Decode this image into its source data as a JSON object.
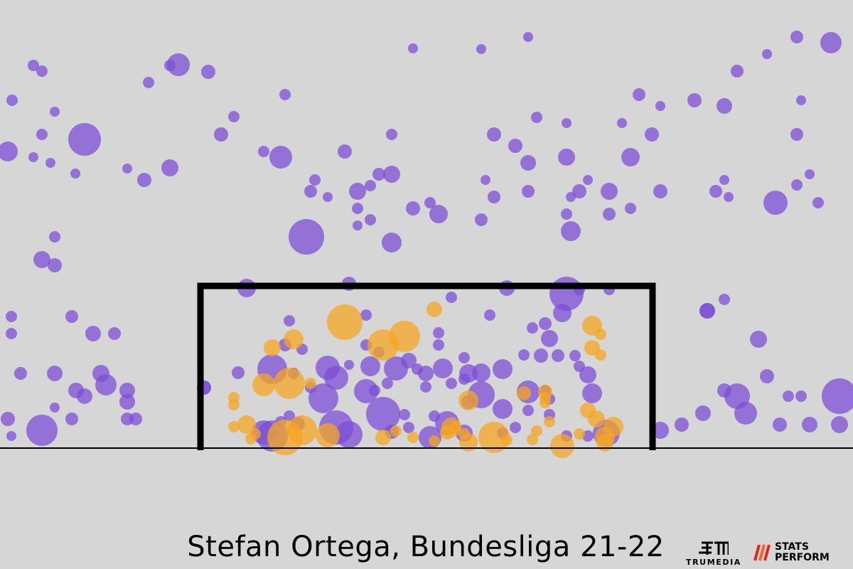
{
  "title": "Stefan Ortega, Bundesliga 21-22",
  "logos": {
    "trumedia": "TRUMEDIA",
    "statsperform": "STATS\nPERFORM"
  },
  "colors": {
    "background": "#d6d6d6",
    "not_goal": "#7c4fd6",
    "goal": "#f5a623",
    "frame": "#000000"
  },
  "chart_data": {
    "type": "scatter",
    "title": "Stefan Ortega, Bundesliga 21-22",
    "xlabel": "",
    "ylabel": "",
    "xlim": [
      0,
      1200
    ],
    "ylim": [
      0,
      630
    ],
    "goal_frame": {
      "x": [
        282,
        918
      ],
      "y": [
        0,
        228
      ]
    },
    "grid": false,
    "series": [
      {
        "color": "#7c4fd6",
        "points": [
          [
            47,
            538,
            8
          ],
          [
            59,
            530,
            8
          ],
          [
            17,
            489,
            8
          ],
          [
            77,
            473,
            7
          ],
          [
            119,
            434,
            23
          ],
          [
            11,
            417,
            14
          ],
          [
            47,
            409,
            7
          ],
          [
            71,
            401,
            7
          ],
          [
            59,
            441,
            8
          ],
          [
            106,
            386,
            7
          ],
          [
            179,
            393,
            7
          ],
          [
            203,
            377,
            10
          ],
          [
            239,
            394,
            12
          ],
          [
            209,
            514,
            8
          ],
          [
            239,
            538,
            8
          ],
          [
            251,
            539,
            16
          ],
          [
            293,
            529,
            10
          ],
          [
            329,
            466,
            8
          ],
          [
            311,
            441,
            10
          ],
          [
            371,
            417,
            8
          ],
          [
            395,
            409,
            16
          ],
          [
            401,
            497,
            8
          ],
          [
            581,
            562,
            7
          ],
          [
            677,
            561,
            7
          ],
          [
            743,
            578,
            7
          ],
          [
            1121,
            578,
            9
          ],
          [
            1169,
            570,
            15
          ],
          [
            1079,
            554,
            7
          ],
          [
            1037,
            530,
            9
          ],
          [
            977,
            489,
            10
          ],
          [
            1019,
            481,
            11
          ],
          [
            1127,
            489,
            7
          ],
          [
            1121,
            441,
            9
          ],
          [
            1139,
            385,
            7
          ],
          [
            1091,
            345,
            17
          ],
          [
            1151,
            345,
            8
          ],
          [
            1025,
            353,
            7
          ],
          [
            1007,
            361,
            9
          ],
          [
            1019,
            377,
            7
          ],
          [
            929,
            361,
            10
          ],
          [
            917,
            441,
            10
          ],
          [
            899,
            497,
            9
          ],
          [
            929,
            481,
            7
          ],
          [
            875,
            457,
            7
          ],
          [
            887,
            409,
            13
          ],
          [
            857,
            361,
            12
          ],
          [
            887,
            337,
            8
          ],
          [
            857,
            329,
            9
          ],
          [
            803,
            305,
            14
          ],
          [
            797,
            329,
            8
          ],
          [
            803,
            353,
            7
          ],
          [
            815,
            361,
            10
          ],
          [
            827,
            377,
            7
          ],
          [
            797,
            409,
            12
          ],
          [
            743,
            401,
            11
          ],
          [
            725,
            425,
            10
          ],
          [
            695,
            441,
            10
          ],
          [
            755,
            465,
            8
          ],
          [
            797,
            457,
            7
          ],
          [
            683,
            377,
            7
          ],
          [
            695,
            353,
            9
          ],
          [
            743,
            361,
            9
          ],
          [
            677,
            321,
            9
          ],
          [
            617,
            329,
            13
          ],
          [
            605,
            345,
            8
          ],
          [
            581,
            337,
            10
          ],
          [
            551,
            441,
            8
          ],
          [
            485,
            417,
            10
          ],
          [
            443,
            377,
            8
          ],
          [
            437,
            361,
            9
          ],
          [
            461,
            353,
            7
          ],
          [
            431,
            297,
            25
          ],
          [
            503,
            337,
            8
          ],
          [
            503,
            313,
            7
          ],
          [
            521,
            321,
            8
          ],
          [
            521,
            369,
            8
          ],
          [
            533,
            385,
            9
          ],
          [
            551,
            385,
            12
          ],
          [
            551,
            289,
            14
          ],
          [
            503,
            361,
            12
          ],
          [
            77,
            297,
            8
          ],
          [
            59,
            265,
            12
          ],
          [
            77,
            257,
            10
          ],
          [
            1121,
            370,
            8
          ],
          [
            1019,
            209,
            8
          ],
          [
            995,
            193,
            11
          ],
          [
            16,
            185,
            8
          ],
          [
            16,
            161,
            8
          ],
          [
            101,
            185,
            9
          ],
          [
            131,
            161,
            11
          ],
          [
            161,
            161,
            9
          ],
          [
            29,
            105,
            9
          ],
          [
            77,
            105,
            11
          ],
          [
            107,
            81,
            11
          ],
          [
            142,
            105,
            12
          ],
          [
            149,
            89,
            15
          ],
          [
            179,
            81,
            11
          ],
          [
            119,
            73,
            11
          ],
          [
            179,
            65,
            11
          ],
          [
            179,
            41,
            9
          ],
          [
            191,
            41,
            9
          ],
          [
            101,
            41,
            9
          ],
          [
            77,
            57,
            7
          ],
          [
            11,
            41,
            10
          ],
          [
            16,
            17,
            7
          ],
          [
            59,
            25,
            22
          ],
          [
            287,
            85,
            10
          ],
          [
            929,
            25,
            12
          ],
          [
            959,
            33,
            10
          ],
          [
            989,
            49,
            11
          ],
          [
            1019,
            81,
            10
          ],
          [
            1037,
            73,
            18
          ],
          [
            1049,
            49,
            16
          ],
          [
            1097,
            33,
            10
          ],
          [
            1139,
            33,
            11
          ],
          [
            1181,
            33,
            12
          ],
          [
            1127,
            73,
            8
          ],
          [
            1079,
            101,
            10
          ],
          [
            1109,
            73,
            8
          ],
          [
            1181,
            73,
            25
          ],
          [
            1067,
            153,
            12
          ],
          [
            995,
            193,
            11
          ]
        ]
      },
      {
        "color": "#7c4fd6",
        "points": [
          [
            347,
            225,
            13
          ],
          [
            491,
            231,
            10
          ],
          [
            713,
            225,
            11
          ],
          [
            797,
            217,
            24
          ],
          [
            815,
            223,
            8
          ],
          [
            857,
            223,
            8
          ],
          [
            635,
            212,
            8
          ],
          [
            407,
            179,
            8
          ],
          [
            515,
            187,
            8
          ],
          [
            689,
            187,
            8
          ],
          [
            791,
            190,
            13
          ],
          [
            767,
            175,
            9
          ],
          [
            749,
            169,
            8
          ],
          [
            773,
            154,
            12
          ],
          [
            617,
            162,
            8
          ],
          [
            617,
            145,
            8
          ],
          [
            737,
            131,
            8
          ],
          [
            761,
            130,
            10
          ],
          [
            785,
            130,
            9
          ],
          [
            809,
            130,
            8
          ],
          [
            425,
            139,
            8
          ],
          [
            401,
            145,
            9
          ],
          [
            383,
            111,
            21
          ],
          [
            413,
            105,
            8
          ],
          [
            335,
            106,
            9
          ],
          [
            461,
            113,
            17
          ],
          [
            491,
            117,
            7
          ],
          [
            521,
            115,
            14
          ],
          [
            533,
            135,
            8
          ],
          [
            515,
            145,
            8
          ],
          [
            557,
            112,
            17
          ],
          [
            575,
            123,
            11
          ],
          [
            599,
            105,
            11
          ],
          [
            623,
            112,
            14
          ],
          [
            653,
            127,
            8
          ],
          [
            659,
            105,
            13
          ],
          [
            677,
            106,
            13
          ],
          [
            707,
            111,
            14
          ],
          [
            653,
            97,
            8
          ],
          [
            635,
            91,
            8
          ],
          [
            599,
            86,
            8
          ],
          [
            587,
            111,
            8
          ],
          [
            545,
            91,
            8
          ],
          [
            527,
            81,
            8
          ],
          [
            437,
            85,
            8
          ],
          [
            473,
            99,
            17
          ],
          [
            455,
            70,
            21
          ],
          [
            515,
            80,
            17
          ],
          [
            539,
            48,
            24
          ],
          [
            569,
            47,
            8
          ],
          [
            611,
            45,
            8
          ],
          [
            629,
            35,
            17
          ],
          [
            659,
            65,
            10
          ],
          [
            677,
            75,
            19
          ],
          [
            707,
            55,
            14
          ],
          [
            743,
            79,
            16
          ],
          [
            767,
            81,
            8
          ],
          [
            773,
            69,
            8
          ],
          [
            743,
            53,
            8
          ],
          [
            773,
            47,
            8
          ],
          [
            827,
            103,
            12
          ],
          [
            833,
            77,
            14
          ],
          [
            815,
            115,
            8
          ],
          [
            853,
            21,
            19
          ],
          [
            827,
            17,
            8
          ],
          [
            797,
            17,
            8
          ],
          [
            653,
            21,
            12
          ],
          [
            707,
            21,
            8
          ],
          [
            725,
            29,
            8
          ],
          [
            605,
            15,
            16
          ],
          [
            575,
            29,
            8
          ],
          [
            551,
            23,
            10
          ],
          [
            491,
            19,
            19
          ],
          [
            473,
            29,
            24
          ],
          [
            419,
            34,
            10
          ],
          [
            395,
            37,
            8
          ],
          [
            383,
            17,
            22
          ],
          [
            371,
            22,
            17
          ],
          [
            407,
            45,
            8
          ],
          [
            287,
            85,
            10
          ]
        ]
      },
      {
        "color": "#f5a623",
        "points": [
          [
            485,
            177,
            25
          ],
          [
            569,
            157,
            22
          ],
          [
            539,
            145,
            22
          ],
          [
            413,
            153,
            14
          ],
          [
            383,
            141,
            12
          ],
          [
            611,
            195,
            11
          ],
          [
            833,
            172,
            14
          ],
          [
            845,
            160,
            8
          ],
          [
            833,
            141,
            11
          ],
          [
            845,
            131,
            8
          ],
          [
            371,
            89,
            16
          ],
          [
            407,
            91,
            22
          ],
          [
            329,
            71,
            8
          ],
          [
            329,
            61,
            8
          ],
          [
            437,
            91,
            8
          ],
          [
            659,
            67,
            14
          ],
          [
            767,
            79,
            10
          ],
          [
            737,
            77,
            10
          ],
          [
            767,
            64,
            8
          ],
          [
            827,
            53,
            11
          ],
          [
            839,
            41,
            12
          ],
          [
            863,
            30,
            14
          ],
          [
            851,
            16,
            14
          ],
          [
            329,
            30,
            8
          ],
          [
            347,
            33,
            13
          ],
          [
            353,
            13,
            8
          ],
          [
            359,
            20,
            8
          ],
          [
            401,
            15,
            25
          ],
          [
            425,
            25,
            21
          ],
          [
            461,
            18,
            17
          ],
          [
            539,
            15,
            11
          ],
          [
            557,
            24,
            8
          ],
          [
            581,
            15,
            8
          ],
          [
            635,
            29,
            14
          ],
          [
            653,
            20,
            8
          ],
          [
            659,
            8,
            13
          ],
          [
            695,
            15,
            22
          ],
          [
            713,
            11,
            8
          ],
          [
            755,
            24,
            8
          ],
          [
            791,
            3,
            17
          ],
          [
            773,
            37,
            8
          ],
          [
            749,
            12,
            8
          ],
          [
            851,
            7,
            12
          ],
          [
            815,
            20,
            8
          ],
          [
            611,
            10,
            8
          ],
          [
            629,
            22,
            10
          ],
          [
            641,
            30,
            8
          ],
          [
            767,
            71,
            8
          ]
        ]
      }
    ]
  }
}
